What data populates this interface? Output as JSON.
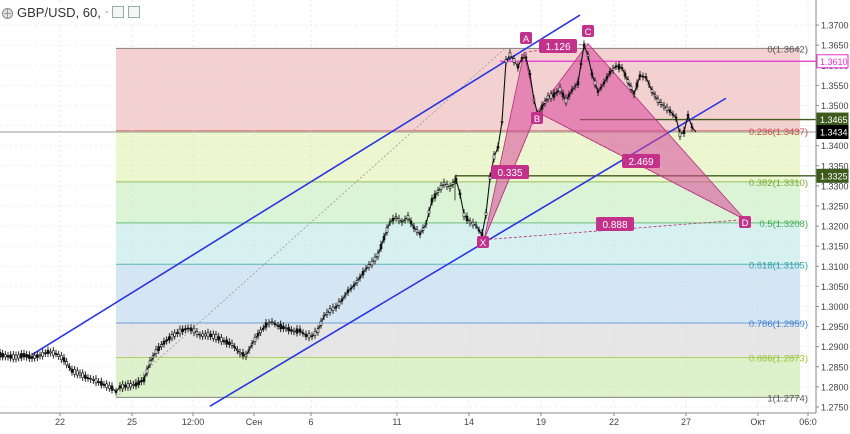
{
  "header": {
    "symbol_interval": "GBP/USD, 60,",
    "dropdown_mark": "-"
  },
  "colors": {
    "channel": "#2b35e0",
    "pattern_fill": "#d9479a",
    "pattern_stroke": "#b5307e",
    "label_bg": "#c2318a",
    "resistance_line": "#e62fd2",
    "level_line": "#3f5a1d",
    "candle": "#111111"
  },
  "chart_data": {
    "type": "candlestick",
    "symbol": "GBP/USD",
    "interval": "60",
    "y_axis": {
      "min": 1.2735,
      "max": 1.3745,
      "ticks": [
        "1.2750",
        "1.2800",
        "1.2850",
        "1.2900",
        "1.2950",
        "1.3000",
        "1.3050",
        "1.3100",
        "1.3150",
        "1.3200",
        "1.3250",
        "1.3300",
        "1.3350",
        "1.3400",
        "1.3450",
        "1.3500",
        "1.3550",
        "1.3600",
        "1.3650",
        "1.3700"
      ]
    },
    "x_axis": {
      "tick_labels": [
        "22",
        "25",
        "12:00",
        "Сен",
        "6",
        "11",
        "14",
        "19",
        "22",
        "27",
        "Окт",
        "06:0"
      ]
    },
    "price_path": [
      [
        0,
        1.288
      ],
      [
        8,
        1.2876
      ],
      [
        16,
        1.2874
      ],
      [
        24,
        1.2879
      ],
      [
        32,
        1.2873
      ],
      [
        40,
        1.2878
      ],
      [
        48,
        1.2887
      ],
      [
        56,
        1.2883
      ],
      [
        64,
        1.2868
      ],
      [
        72,
        1.284
      ],
      [
        80,
        1.2832
      ],
      [
        88,
        1.2822
      ],
      [
        96,
        1.2815
      ],
      [
        104,
        1.2806
      ],
      [
        112,
        1.2797
      ],
      [
        116,
        1.2788
      ],
      [
        120,
        1.28
      ],
      [
        128,
        1.2803
      ],
      [
        136,
        1.2806
      ],
      [
        144,
        1.2818
      ],
      [
        150,
        1.286
      ],
      [
        156,
        1.2888
      ],
      [
        164,
        1.291
      ],
      [
        172,
        1.2926
      ],
      [
        180,
        1.2938
      ],
      [
        188,
        1.2946
      ],
      [
        194,
        1.294
      ],
      [
        200,
        1.2928
      ],
      [
        208,
        1.293
      ],
      [
        216,
        1.2924
      ],
      [
        224,
        1.2914
      ],
      [
        232,
        1.2906
      ],
      [
        240,
        1.2884
      ],
      [
        246,
        1.2878
      ],
      [
        252,
        1.2906
      ],
      [
        258,
        1.293
      ],
      [
        266,
        1.2954
      ],
      [
        272,
        1.2962
      ],
      [
        278,
        1.2952
      ],
      [
        286,
        1.2946
      ],
      [
        294,
        1.2938
      ],
      [
        300,
        1.294
      ],
      [
        306,
        1.2928
      ],
      [
        312,
        1.2926
      ],
      [
        318,
        1.294
      ],
      [
        324,
        1.2976
      ],
      [
        330,
        1.299
      ],
      [
        336,
        1.2998
      ],
      [
        342,
        1.3016
      ],
      [
        348,
        1.3038
      ],
      [
        354,
        1.3052
      ],
      [
        360,
        1.3072
      ],
      [
        366,
        1.3094
      ],
      [
        372,
        1.3108
      ],
      [
        378,
        1.3128
      ],
      [
        384,
        1.317
      ],
      [
        390,
        1.321
      ],
      [
        396,
        1.3222
      ],
      [
        402,
        1.321
      ],
      [
        408,
        1.3222
      ],
      [
        414,
        1.3196
      ],
      [
        420,
        1.318
      ],
      [
        426,
        1.3205
      ],
      [
        432,
        1.3264
      ],
      [
        438,
        1.3286
      ],
      [
        444,
        1.3306
      ],
      [
        450,
        1.3296
      ],
      [
        456,
        1.3316
      ],
      [
        460,
        1.328
      ],
      [
        464,
        1.3228
      ],
      [
        470,
        1.321
      ],
      [
        476,
        1.3202
      ],
      [
        482,
        1.3178
      ],
      [
        486,
        1.323
      ],
      [
        490,
        1.332
      ],
      [
        494,
        1.3372
      ],
      [
        498,
        1.3396
      ],
      [
        502,
        1.346
      ],
      [
        506,
        1.361
      ],
      [
        510,
        1.3626
      ],
      [
        514,
        1.3612
      ],
      [
        518,
        1.3596
      ],
      [
        522,
        1.3618
      ],
      [
        526,
        1.362
      ],
      [
        530,
        1.3578
      ],
      [
        534,
        1.3514
      ],
      [
        538,
        1.3476
      ],
      [
        542,
        1.3496
      ],
      [
        548,
        1.352
      ],
      [
        554,
        1.3526
      ],
      [
        560,
        1.354
      ],
      [
        566,
        1.3512
      ],
      [
        572,
        1.3538
      ],
      [
        578,
        1.3556
      ],
      [
        584,
        1.365
      ],
      [
        588,
        1.3624
      ],
      [
        592,
        1.3578
      ],
      [
        598,
        1.3534
      ],
      [
        604,
        1.3556
      ],
      [
        610,
        1.3582
      ],
      [
        616,
        1.3598
      ],
      [
        622,
        1.3594
      ],
      [
        628,
        1.356
      ],
      [
        634,
        1.3528
      ],
      [
        640,
        1.3574
      ],
      [
        646,
        1.357
      ],
      [
        652,
        1.3536
      ],
      [
        658,
        1.3512
      ],
      [
        664,
        1.3498
      ],
      [
        670,
        1.3486
      ],
      [
        676,
        1.347
      ],
      [
        680,
        1.3428
      ],
      [
        684,
        1.3434
      ],
      [
        688,
        1.3476
      ],
      [
        692,
        1.3446
      ],
      [
        696,
        1.3434
      ]
    ],
    "fib_retracement": {
      "levels": [
        {
          "ratio": "0",
          "price": 1.3642,
          "label": "0(1.3642)",
          "color": "#555555",
          "fill": "#f2c9c9"
        },
        {
          "ratio": "0.236",
          "price": 1.3437,
          "label": "0.236(1.3437)",
          "color": "#d04a4a",
          "fill": "#e9f4c7"
        },
        {
          "ratio": "0.382",
          "price": 1.331,
          "label": "0.382(1.3310)",
          "color": "#7aa82d",
          "fill": "#d5f2cf"
        },
        {
          "ratio": "0.5",
          "price": 1.3208,
          "label": "0.5(1.3208)",
          "color": "#3fa84f",
          "fill": "#cfeeed"
        },
        {
          "ratio": "0.618",
          "price": 1.3105,
          "label": "0.618(1.3105)",
          "color": "#2aa0a0",
          "fill": "#cde2f1"
        },
        {
          "ratio": "0.786",
          "price": 1.2959,
          "label": "0.786(1.2959)",
          "color": "#3a7fcf",
          "fill": "#e2e2e2"
        },
        {
          "ratio": "0.886",
          "price": 1.2873,
          "label": "0.886(1.2873)",
          "color": "#9dc23a",
          "fill": "#d7eec2"
        },
        {
          "ratio": "1",
          "price": 1.2774,
          "label": "1(1.2774)",
          "color": "#555555",
          "fill": null
        }
      ]
    },
    "harmonic_pattern": {
      "points": {
        "X": 1.3166,
        "A": 1.3632,
        "B": 1.3484,
        "C": 1.3654,
        "D": 1.3216
      },
      "ratios": [
        "1.126",
        "0.335",
        "2.469",
        "0.888"
      ]
    },
    "price_markers": [
      {
        "value": "1.3610",
        "style": "magenta"
      },
      {
        "value": "1.3465",
        "style": "dark"
      },
      {
        "value": "1.3434",
        "style": "black"
      },
      {
        "value": "1.3325",
        "style": "dark"
      }
    ]
  }
}
